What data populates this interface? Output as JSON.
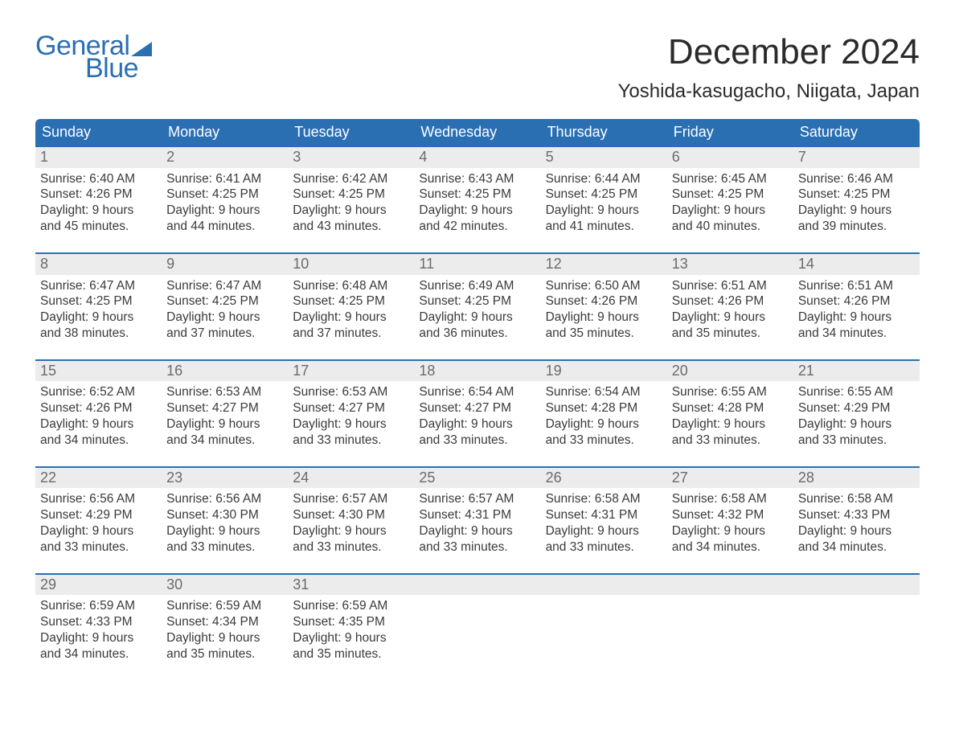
{
  "logo": {
    "line1": "General",
    "line2": "Blue"
  },
  "title": "December 2024",
  "location": "Yoshida-kasugacho, Niigata, Japan",
  "colors": {
    "header_blue": "#2b6fb3",
    "row_gray": "#ececec",
    "text_dark": "#2a2a2a",
    "text_body": "#3a3a3a",
    "day_num_gray": "#6b6b6b",
    "background": "#ffffff"
  },
  "typography": {
    "title_fontsize": 44,
    "location_fontsize": 24,
    "weekday_fontsize": 18,
    "daynum_fontsize": 18,
    "body_fontsize": 15.5
  },
  "weekdays": [
    "Sunday",
    "Monday",
    "Tuesday",
    "Wednesday",
    "Thursday",
    "Friday",
    "Saturday"
  ],
  "weeks": [
    [
      {
        "day": "1",
        "sunrise": "Sunrise: 6:40 AM",
        "sunset": "Sunset: 4:26 PM",
        "dl1": "Daylight: 9 hours",
        "dl2": "and 45 minutes."
      },
      {
        "day": "2",
        "sunrise": "Sunrise: 6:41 AM",
        "sunset": "Sunset: 4:25 PM",
        "dl1": "Daylight: 9 hours",
        "dl2": "and 44 minutes."
      },
      {
        "day": "3",
        "sunrise": "Sunrise: 6:42 AM",
        "sunset": "Sunset: 4:25 PM",
        "dl1": "Daylight: 9 hours",
        "dl2": "and 43 minutes."
      },
      {
        "day": "4",
        "sunrise": "Sunrise: 6:43 AM",
        "sunset": "Sunset: 4:25 PM",
        "dl1": "Daylight: 9 hours",
        "dl2": "and 42 minutes."
      },
      {
        "day": "5",
        "sunrise": "Sunrise: 6:44 AM",
        "sunset": "Sunset: 4:25 PM",
        "dl1": "Daylight: 9 hours",
        "dl2": "and 41 minutes."
      },
      {
        "day": "6",
        "sunrise": "Sunrise: 6:45 AM",
        "sunset": "Sunset: 4:25 PM",
        "dl1": "Daylight: 9 hours",
        "dl2": "and 40 minutes."
      },
      {
        "day": "7",
        "sunrise": "Sunrise: 6:46 AM",
        "sunset": "Sunset: 4:25 PM",
        "dl1": "Daylight: 9 hours",
        "dl2": "and 39 minutes."
      }
    ],
    [
      {
        "day": "8",
        "sunrise": "Sunrise: 6:47 AM",
        "sunset": "Sunset: 4:25 PM",
        "dl1": "Daylight: 9 hours",
        "dl2": "and 38 minutes."
      },
      {
        "day": "9",
        "sunrise": "Sunrise: 6:47 AM",
        "sunset": "Sunset: 4:25 PM",
        "dl1": "Daylight: 9 hours",
        "dl2": "and 37 minutes."
      },
      {
        "day": "10",
        "sunrise": "Sunrise: 6:48 AM",
        "sunset": "Sunset: 4:25 PM",
        "dl1": "Daylight: 9 hours",
        "dl2": "and 37 minutes."
      },
      {
        "day": "11",
        "sunrise": "Sunrise: 6:49 AM",
        "sunset": "Sunset: 4:25 PM",
        "dl1": "Daylight: 9 hours",
        "dl2": "and 36 minutes."
      },
      {
        "day": "12",
        "sunrise": "Sunrise: 6:50 AM",
        "sunset": "Sunset: 4:26 PM",
        "dl1": "Daylight: 9 hours",
        "dl2": "and 35 minutes."
      },
      {
        "day": "13",
        "sunrise": "Sunrise: 6:51 AM",
        "sunset": "Sunset: 4:26 PM",
        "dl1": "Daylight: 9 hours",
        "dl2": "and 35 minutes."
      },
      {
        "day": "14",
        "sunrise": "Sunrise: 6:51 AM",
        "sunset": "Sunset: 4:26 PM",
        "dl1": "Daylight: 9 hours",
        "dl2": "and 34 minutes."
      }
    ],
    [
      {
        "day": "15",
        "sunrise": "Sunrise: 6:52 AM",
        "sunset": "Sunset: 4:26 PM",
        "dl1": "Daylight: 9 hours",
        "dl2": "and 34 minutes."
      },
      {
        "day": "16",
        "sunrise": "Sunrise: 6:53 AM",
        "sunset": "Sunset: 4:27 PM",
        "dl1": "Daylight: 9 hours",
        "dl2": "and 34 minutes."
      },
      {
        "day": "17",
        "sunrise": "Sunrise: 6:53 AM",
        "sunset": "Sunset: 4:27 PM",
        "dl1": "Daylight: 9 hours",
        "dl2": "and 33 minutes."
      },
      {
        "day": "18",
        "sunrise": "Sunrise: 6:54 AM",
        "sunset": "Sunset: 4:27 PM",
        "dl1": "Daylight: 9 hours",
        "dl2": "and 33 minutes."
      },
      {
        "day": "19",
        "sunrise": "Sunrise: 6:54 AM",
        "sunset": "Sunset: 4:28 PM",
        "dl1": "Daylight: 9 hours",
        "dl2": "and 33 minutes."
      },
      {
        "day": "20",
        "sunrise": "Sunrise: 6:55 AM",
        "sunset": "Sunset: 4:28 PM",
        "dl1": "Daylight: 9 hours",
        "dl2": "and 33 minutes."
      },
      {
        "day": "21",
        "sunrise": "Sunrise: 6:55 AM",
        "sunset": "Sunset: 4:29 PM",
        "dl1": "Daylight: 9 hours",
        "dl2": "and 33 minutes."
      }
    ],
    [
      {
        "day": "22",
        "sunrise": "Sunrise: 6:56 AM",
        "sunset": "Sunset: 4:29 PM",
        "dl1": "Daylight: 9 hours",
        "dl2": "and 33 minutes."
      },
      {
        "day": "23",
        "sunrise": "Sunrise: 6:56 AM",
        "sunset": "Sunset: 4:30 PM",
        "dl1": "Daylight: 9 hours",
        "dl2": "and 33 minutes."
      },
      {
        "day": "24",
        "sunrise": "Sunrise: 6:57 AM",
        "sunset": "Sunset: 4:30 PM",
        "dl1": "Daylight: 9 hours",
        "dl2": "and 33 minutes."
      },
      {
        "day": "25",
        "sunrise": "Sunrise: 6:57 AM",
        "sunset": "Sunset: 4:31 PM",
        "dl1": "Daylight: 9 hours",
        "dl2": "and 33 minutes."
      },
      {
        "day": "26",
        "sunrise": "Sunrise: 6:58 AM",
        "sunset": "Sunset: 4:31 PM",
        "dl1": "Daylight: 9 hours",
        "dl2": "and 33 minutes."
      },
      {
        "day": "27",
        "sunrise": "Sunrise: 6:58 AM",
        "sunset": "Sunset: 4:32 PM",
        "dl1": "Daylight: 9 hours",
        "dl2": "and 34 minutes."
      },
      {
        "day": "28",
        "sunrise": "Sunrise: 6:58 AM",
        "sunset": "Sunset: 4:33 PM",
        "dl1": "Daylight: 9 hours",
        "dl2": "and 34 minutes."
      }
    ],
    [
      {
        "day": "29",
        "sunrise": "Sunrise: 6:59 AM",
        "sunset": "Sunset: 4:33 PM",
        "dl1": "Daylight: 9 hours",
        "dl2": "and 34 minutes."
      },
      {
        "day": "30",
        "sunrise": "Sunrise: 6:59 AM",
        "sunset": "Sunset: 4:34 PM",
        "dl1": "Daylight: 9 hours",
        "dl2": "and 35 minutes."
      },
      {
        "day": "31",
        "sunrise": "Sunrise: 6:59 AM",
        "sunset": "Sunset: 4:35 PM",
        "dl1": "Daylight: 9 hours",
        "dl2": "and 35 minutes."
      },
      {
        "day": "",
        "sunrise": "",
        "sunset": "",
        "dl1": "",
        "dl2": ""
      },
      {
        "day": "",
        "sunrise": "",
        "sunset": "",
        "dl1": "",
        "dl2": ""
      },
      {
        "day": "",
        "sunrise": "",
        "sunset": "",
        "dl1": "",
        "dl2": ""
      },
      {
        "day": "",
        "sunrise": "",
        "sunset": "",
        "dl1": "",
        "dl2": ""
      }
    ]
  ]
}
